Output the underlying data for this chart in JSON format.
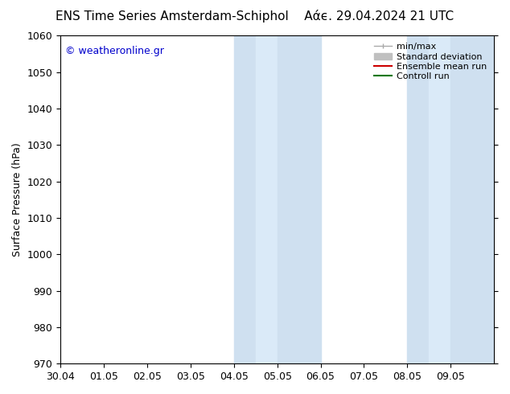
{
  "title_left": "ENS Time Series Amsterdam-Schiphol",
  "title_right": "Αάϵ. 29.04.2024 21 UTC",
  "ylabel": "Surface Pressure (hPa)",
  "ylim": [
    970,
    1060
  ],
  "yticks": [
    970,
    980,
    990,
    1000,
    1010,
    1020,
    1030,
    1040,
    1050,
    1060
  ],
  "xlim_start": 0,
  "xlim_end": 10,
  "xtick_labels": [
    "30.04",
    "01.05",
    "02.05",
    "03.05",
    "04.05",
    "05.05",
    "06.05",
    "07.05",
    "08.05",
    "09.05"
  ],
  "xtick_positions": [
    0,
    1,
    2,
    3,
    4,
    5,
    6,
    7,
    8,
    9
  ],
  "shaded_bands": [
    {
      "x_start": 4.0,
      "x_end": 4.5,
      "color": "#cfe0f0"
    },
    {
      "x_start": 4.5,
      "x_end": 5.0,
      "color": "#daeaf8"
    },
    {
      "x_start": 5.0,
      "x_end": 6.0,
      "color": "#cfe0f0"
    },
    {
      "x_start": 8.0,
      "x_end": 8.5,
      "color": "#cfe0f0"
    },
    {
      "x_start": 8.5,
      "x_end": 9.0,
      "color": "#daeaf8"
    },
    {
      "x_start": 9.0,
      "x_end": 10.0,
      "color": "#cfe0f0"
    }
  ],
  "watermark_text": "© weatheronline.gr",
  "watermark_color": "#0000cc",
  "legend_items": [
    {
      "label": "min/max",
      "color": "#aaaaaa"
    },
    {
      "label": "Standard deviation",
      "color": "#c0c0c0"
    },
    {
      "label": "Ensemble mean run",
      "color": "#cc0000"
    },
    {
      "label": "Controll run",
      "color": "#007700"
    }
  ],
  "background_color": "#ffffff",
  "title_fontsize": 11,
  "label_fontsize": 9,
  "tick_fontsize": 9
}
